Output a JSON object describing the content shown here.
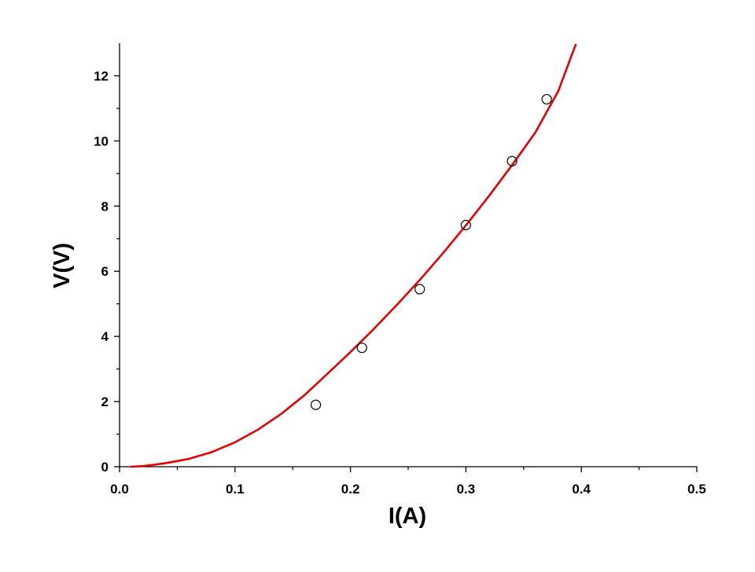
{
  "chart_data": {
    "type": "scatter",
    "xlabel": "I(A)",
    "ylabel": "V(V)",
    "xlim": [
      0.0,
      0.5
    ],
    "ylim": [
      0,
      13
    ],
    "x_ticks": [
      0.0,
      0.1,
      0.2,
      0.3,
      0.4,
      0.5
    ],
    "x_tick_labels": [
      "0.0",
      "0.1",
      "0.2",
      "0.3",
      "0.4",
      "0.5"
    ],
    "y_ticks": [
      0,
      2,
      4,
      6,
      8,
      10,
      12
    ],
    "y_tick_labels": [
      "0",
      "2",
      "4",
      "6",
      "8",
      "10",
      "12"
    ],
    "grid": false,
    "series": [
      {
        "type": "scatter",
        "marker": "open-circle",
        "color": "#000000",
        "x": [
          0.17,
          0.21,
          0.26,
          0.3,
          0.34,
          0.37
        ],
        "y": [
          1.9,
          3.65,
          5.45,
          7.42,
          9.38,
          11.28
        ]
      },
      {
        "type": "line",
        "color": "#e60000",
        "x": [
          0.01,
          0.02,
          0.03,
          0.04,
          0.06,
          0.08,
          0.1,
          0.12,
          0.14,
          0.16,
          0.18,
          0.2,
          0.22,
          0.24,
          0.26,
          0.28,
          0.3,
          0.32,
          0.34,
          0.36,
          0.38,
          0.395
        ],
        "y": [
          0.0,
          0.02,
          0.06,
          0.11,
          0.24,
          0.45,
          0.75,
          1.14,
          1.62,
          2.19,
          2.85,
          3.52,
          4.22,
          4.96,
          5.73,
          6.55,
          7.41,
          8.31,
          9.26,
          10.25,
          11.53,
          12.95
        ]
      }
    ]
  }
}
